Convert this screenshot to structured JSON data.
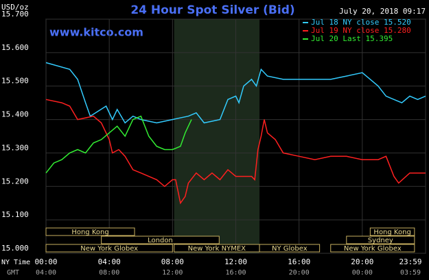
{
  "chart_data": {
    "type": "line",
    "title": "24 Hour Spot Silver (Bid)",
    "y_unit": "USD/oz",
    "timestamp": "July 20, 2018 09:17",
    "website": "www.kitco.com",
    "x_axis_label": "NY Time",
    "x2_axis_label": "GMT",
    "xlim": [
      0,
      24
    ],
    "xticks": [
      {
        "value": 0,
        "label": "00:00"
      },
      {
        "value": 4,
        "label": "04:00"
      },
      {
        "value": 8,
        "label": "08:00"
      },
      {
        "value": 12,
        "label": "12:00"
      },
      {
        "value": 16,
        "label": "16:00"
      },
      {
        "value": 20,
        "label": "20:00"
      },
      {
        "value": 24,
        "label": "23:59"
      }
    ],
    "x2ticks": [
      {
        "value": 0,
        "label": "04:00"
      },
      {
        "value": 4,
        "label": "08:00"
      },
      {
        "value": 8,
        "label": "12:00"
      },
      {
        "value": 12,
        "label": "16:00"
      },
      {
        "value": 16,
        "label": "20:00"
      },
      {
        "value": 20,
        "label": "00:00"
      },
      {
        "value": 24,
        "label": "03:59"
      }
    ],
    "ylim": [
      15.0,
      15.7
    ],
    "yticks": [
      {
        "value": 15.0,
        "label": "15.000"
      },
      {
        "value": 15.1,
        "label": "15.100"
      },
      {
        "value": 15.2,
        "label": "15.200"
      },
      {
        "value": 15.3,
        "label": "15.300"
      },
      {
        "value": 15.4,
        "label": "15.400"
      },
      {
        "value": 15.5,
        "label": "15.500"
      },
      {
        "value": 15.6,
        "label": "15.600"
      },
      {
        "value": 15.7,
        "label": "15.700"
      }
    ],
    "grid": true,
    "highlight": [
      8.1,
      13.5
    ],
    "sessions": [
      {
        "label": "Hong Kong",
        "start": 0,
        "end": 5.6
      },
      {
        "label": "Hong Kong",
        "start": 20.5,
        "end": 23.3
      },
      {
        "label": "London",
        "start": 3.5,
        "end": 10.95
      },
      {
        "label": "Sydney",
        "start": 19.0,
        "end": 23.3
      },
      {
        "label": "New York Globex",
        "start": 0,
        "end": 8.0
      },
      {
        "label": "New York NYMEX",
        "start": 8.1,
        "end": 13.5
      },
      {
        "label": "NY Globex",
        "start": 13.5,
        "end": 17.3
      },
      {
        "label": "New York Globex",
        "start": 18.0,
        "end": 23.3
      }
    ],
    "series": [
      {
        "name": "Jul 18 NY close 15.520",
        "color": "#33ccff",
        "x": [
          0,
          1.5,
          2,
          2.5,
          2.8,
          3.8,
          4.2,
          4.5,
          5,
          5.5,
          6,
          7,
          8,
          9,
          9.5,
          10,
          11,
          11.5,
          12,
          12.2,
          12.5,
          13,
          13.3,
          13.6,
          14,
          15,
          16,
          17,
          18,
          19,
          20,
          20.5,
          21,
          21.5,
          22,
          22.5,
          23,
          23.5,
          24
        ],
        "values": [
          15.57,
          15.55,
          15.52,
          15.45,
          15.41,
          15.44,
          15.4,
          15.43,
          15.39,
          15.41,
          15.4,
          15.39,
          15.4,
          15.41,
          15.42,
          15.39,
          15.4,
          15.46,
          15.47,
          15.45,
          15.5,
          15.52,
          15.5,
          15.55,
          15.53,
          15.52,
          15.52,
          15.52,
          15.52,
          15.53,
          15.54,
          15.52,
          15.5,
          15.47,
          15.46,
          15.45,
          15.47,
          15.46,
          15.47
        ]
      },
      {
        "name": "Jul 19 NY close 15.280",
        "color": "#ff2020",
        "x": [
          0,
          1,
          1.5,
          2,
          3,
          3.5,
          4,
          4.2,
          4.6,
          5,
          5.5,
          6,
          7,
          7.5,
          8,
          8.2,
          8.5,
          8.8,
          9,
          9.5,
          10,
          10.5,
          11,
          11.5,
          12,
          13,
          13.2,
          13.4,
          13.6,
          13.8,
          14,
          14.5,
          15,
          16,
          17,
          18,
          19,
          20,
          21,
          21.5,
          22,
          22.3,
          23,
          24
        ],
        "values": [
          15.46,
          15.45,
          15.44,
          15.4,
          15.41,
          15.39,
          15.34,
          15.3,
          15.31,
          15.29,
          15.25,
          15.24,
          15.22,
          15.2,
          15.22,
          15.22,
          15.15,
          15.17,
          15.21,
          15.24,
          15.22,
          15.24,
          15.22,
          15.25,
          15.23,
          15.23,
          15.22,
          15.31,
          15.35,
          15.4,
          15.36,
          15.34,
          15.3,
          15.29,
          15.28,
          15.29,
          15.29,
          15.28,
          15.28,
          15.29,
          15.23,
          15.21,
          15.24,
          15.24
        ]
      },
      {
        "name": "Jul 20 Last 15.395",
        "color": "#33ee33",
        "x": [
          0,
          0.5,
          1,
          1.5,
          2,
          2.5,
          3,
          3.5,
          4,
          4.5,
          5,
          5.5,
          6,
          6.5,
          7,
          7.5,
          8,
          8.5,
          8.8,
          9,
          9.2
        ],
        "values": [
          15.24,
          15.27,
          15.28,
          15.3,
          15.31,
          15.3,
          15.33,
          15.34,
          15.36,
          15.38,
          15.35,
          15.4,
          15.41,
          15.35,
          15.32,
          15.31,
          15.31,
          15.32,
          15.36,
          15.38,
          15.4
        ]
      }
    ]
  }
}
